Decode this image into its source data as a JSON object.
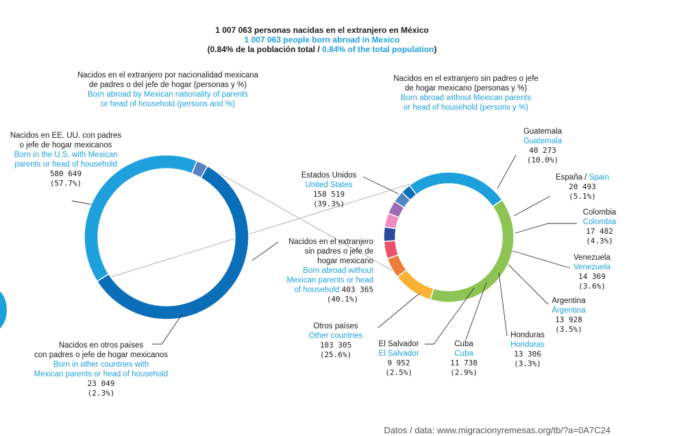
{
  "title": {
    "es": "1 007 063 personas nacidas en el extranjero en México",
    "en": "1 007 063 people born abroad in Mexico",
    "pct_open": "(0.84% de la población total / ",
    "pct_en": "0.84% of the total population",
    "pct_close": ")"
  },
  "left_chart": {
    "title_es_1": "Nacidos en el extranjero por nacionalidad mexicana",
    "title_es_2": "de padres o del jefe de hogar (personas y %)",
    "title_en_1": "Born abroad by Mexican nationality of parents",
    "title_en_2": "or head of household (persons and %)",
    "us": {
      "es_1": "Nacidos en EE. UU. con padres",
      "es_2": "o jefe de hogar mexicanos",
      "en_1": "Born in the U.S. with Mexican",
      "en_2": "parents or head of household",
      "value": "580 649",
      "pct": "(57.7%)"
    },
    "without": {
      "es_1": "Nacidos en el extranjero",
      "es_2": "sin padres o jefe de",
      "es_3": "hogar mexicano",
      "en_1": "Born abroad without",
      "en_2": "Mexican parents or head",
      "en_3": "of household",
      "value": "403 365",
      "pct": "(40.1%)"
    },
    "other": {
      "es_1": "Nacidos en otros países",
      "es_2": "con padres o jefe de hogar mexicanos",
      "en_1": "Born in other countries with",
      "en_2": "Mexican parents or head of household",
      "value": "23 049",
      "pct": "(2.3%)"
    }
  },
  "right_chart": {
    "title_es_1": "Nacidos en el extranjero sin padres o jefe",
    "title_es_2": "de hogar mexicano (personas y %)",
    "title_en_1": "Born abroad without Mexican parents",
    "title_en_2": "or head of household (persons y %)",
    "labels": {
      "estados_unidos": {
        "es": "Estados Unidos",
        "en": "United States",
        "value": "158 519",
        "pct": "(39.3%)"
      },
      "guatemala": {
        "es": "Guatemala",
        "en": "Guatemala",
        "value": "40 273",
        "pct": "(10.0%)"
      },
      "espana": {
        "es": "España / ",
        "en": "Spain",
        "value": "20 493",
        "pct": "(5.1%)"
      },
      "colombia": {
        "es": "Colombia",
        "en": "Colombia",
        "value": "17 482",
        "pct": "(4.3%)"
      },
      "venezuela": {
        "es": "Venezuela",
        "en": "Venezuela",
        "value": "14 369",
        "pct": "(3.6%)"
      },
      "argentina": {
        "es": "Argentina",
        "en": "Argentina",
        "value": "13 928",
        "pct": "(3.5%)"
      },
      "honduras": {
        "es": "Honduras",
        "en": "Honduras",
        "value": "13 306",
        "pct": "(3.3%)"
      },
      "cuba": {
        "es": "Cuba",
        "en": "Cuba",
        "value": "11 738",
        "pct": "(2.9%)"
      },
      "el_salvador": {
        "es": "El Salvador",
        "en": "El Salvador",
        "value": "9 952",
        "pct": "(2.5%)"
      },
      "otros": {
        "es": "Otros países",
        "en": "Other countries",
        "value": "103 305",
        "pct": "(25.6%)"
      }
    }
  },
  "source": "Datos / data: www.migracionyremesas.org/tb/?a=0A7C24",
  "chart_data": [
    {
      "type": "pie",
      "categories": [
        "Nacidos en EE. UU. con padres o jefe de hogar mexicanos",
        "Nacidos en el extranjero sin padres o jefe de hogar mexicano",
        "Nacidos en otros países con padres o jefe de hogar mexicanos"
      ],
      "values": [
        580649,
        403365,
        23049
      ],
      "percent": [
        57.7,
        40.1,
        2.3
      ],
      "colors": [
        "#0a6fb8",
        "#1ea0dc",
        "#5b7fc3"
      ]
    },
    {
      "type": "pie",
      "categories": [
        "Estados Unidos",
        "Guatemala",
        "España",
        "Colombia",
        "Venezuela",
        "Argentina",
        "Honduras",
        "Cuba",
        "El Salvador",
        "Otros países"
      ],
      "values": [
        158519,
        40273,
        20493,
        17482,
        14369,
        13928,
        13306,
        11738,
        9952,
        103305
      ],
      "percent": [
        39.3,
        10.0,
        5.1,
        4.3,
        3.6,
        3.5,
        3.3,
        2.9,
        2.5,
        25.6
      ],
      "colors": [
        "#8dc454",
        "#f9b233",
        "#ef7b3d",
        "#e9526b",
        "#2a4a9a",
        "#ef8bbf",
        "#9b6bb3",
        "#4f86c6",
        "#0a6fb8",
        "#1ea0dc"
      ]
    }
  ]
}
